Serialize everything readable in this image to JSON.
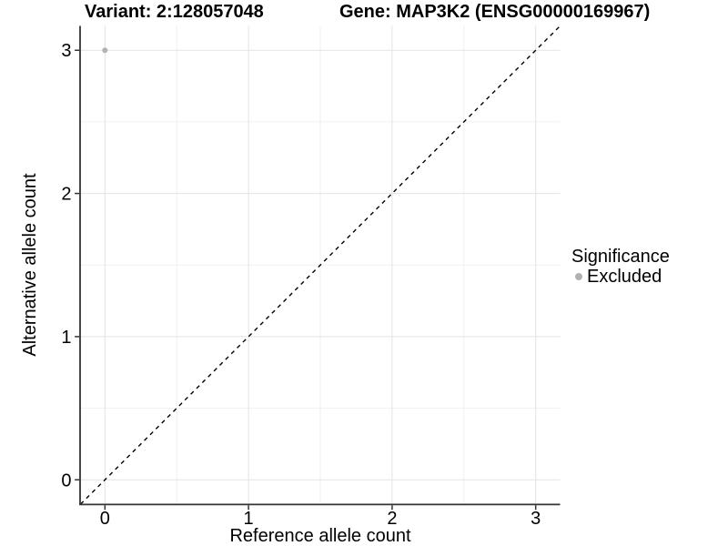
{
  "titles": {
    "left": "Variant: 2:128057048",
    "right": "Gene: MAP3K2 (ENSG00000169967)"
  },
  "legend": {
    "title": "Significance",
    "items": [
      {
        "label": "Excluded",
        "color": "#b2b2b2"
      }
    ]
  },
  "chart_data": {
    "type": "scatter",
    "xlabel": "Reference allele count",
    "ylabel": "Alternative allele count",
    "xlim": [
      -0.17,
      3.17
    ],
    "ylim": [
      -0.17,
      3.17
    ],
    "x_ticks": [
      0,
      1,
      2,
      3
    ],
    "y_ticks": [
      0,
      1,
      2,
      3
    ],
    "x_minor_ticks": [
      0.5,
      1.5,
      2.5
    ],
    "y_minor_ticks": [
      0.5,
      1.5,
      2.5
    ],
    "grid": true,
    "legend_position": "right",
    "series": [
      {
        "name": "Excluded",
        "color": "#b2b2b2",
        "points": [
          {
            "x": 0,
            "y": 3
          }
        ]
      }
    ],
    "reference_line": {
      "type": "identity",
      "style": "dashed",
      "from": [
        -0.17,
        -0.17
      ],
      "to": [
        3.17,
        3.17
      ],
      "color": "#000000"
    }
  },
  "colors": {
    "background": "#ffffff",
    "grid_major": "#e3e3e3",
    "grid_minor": "#f1f1f1",
    "axis": "#333333",
    "text": "#000000",
    "point": "#b2b2b2"
  }
}
